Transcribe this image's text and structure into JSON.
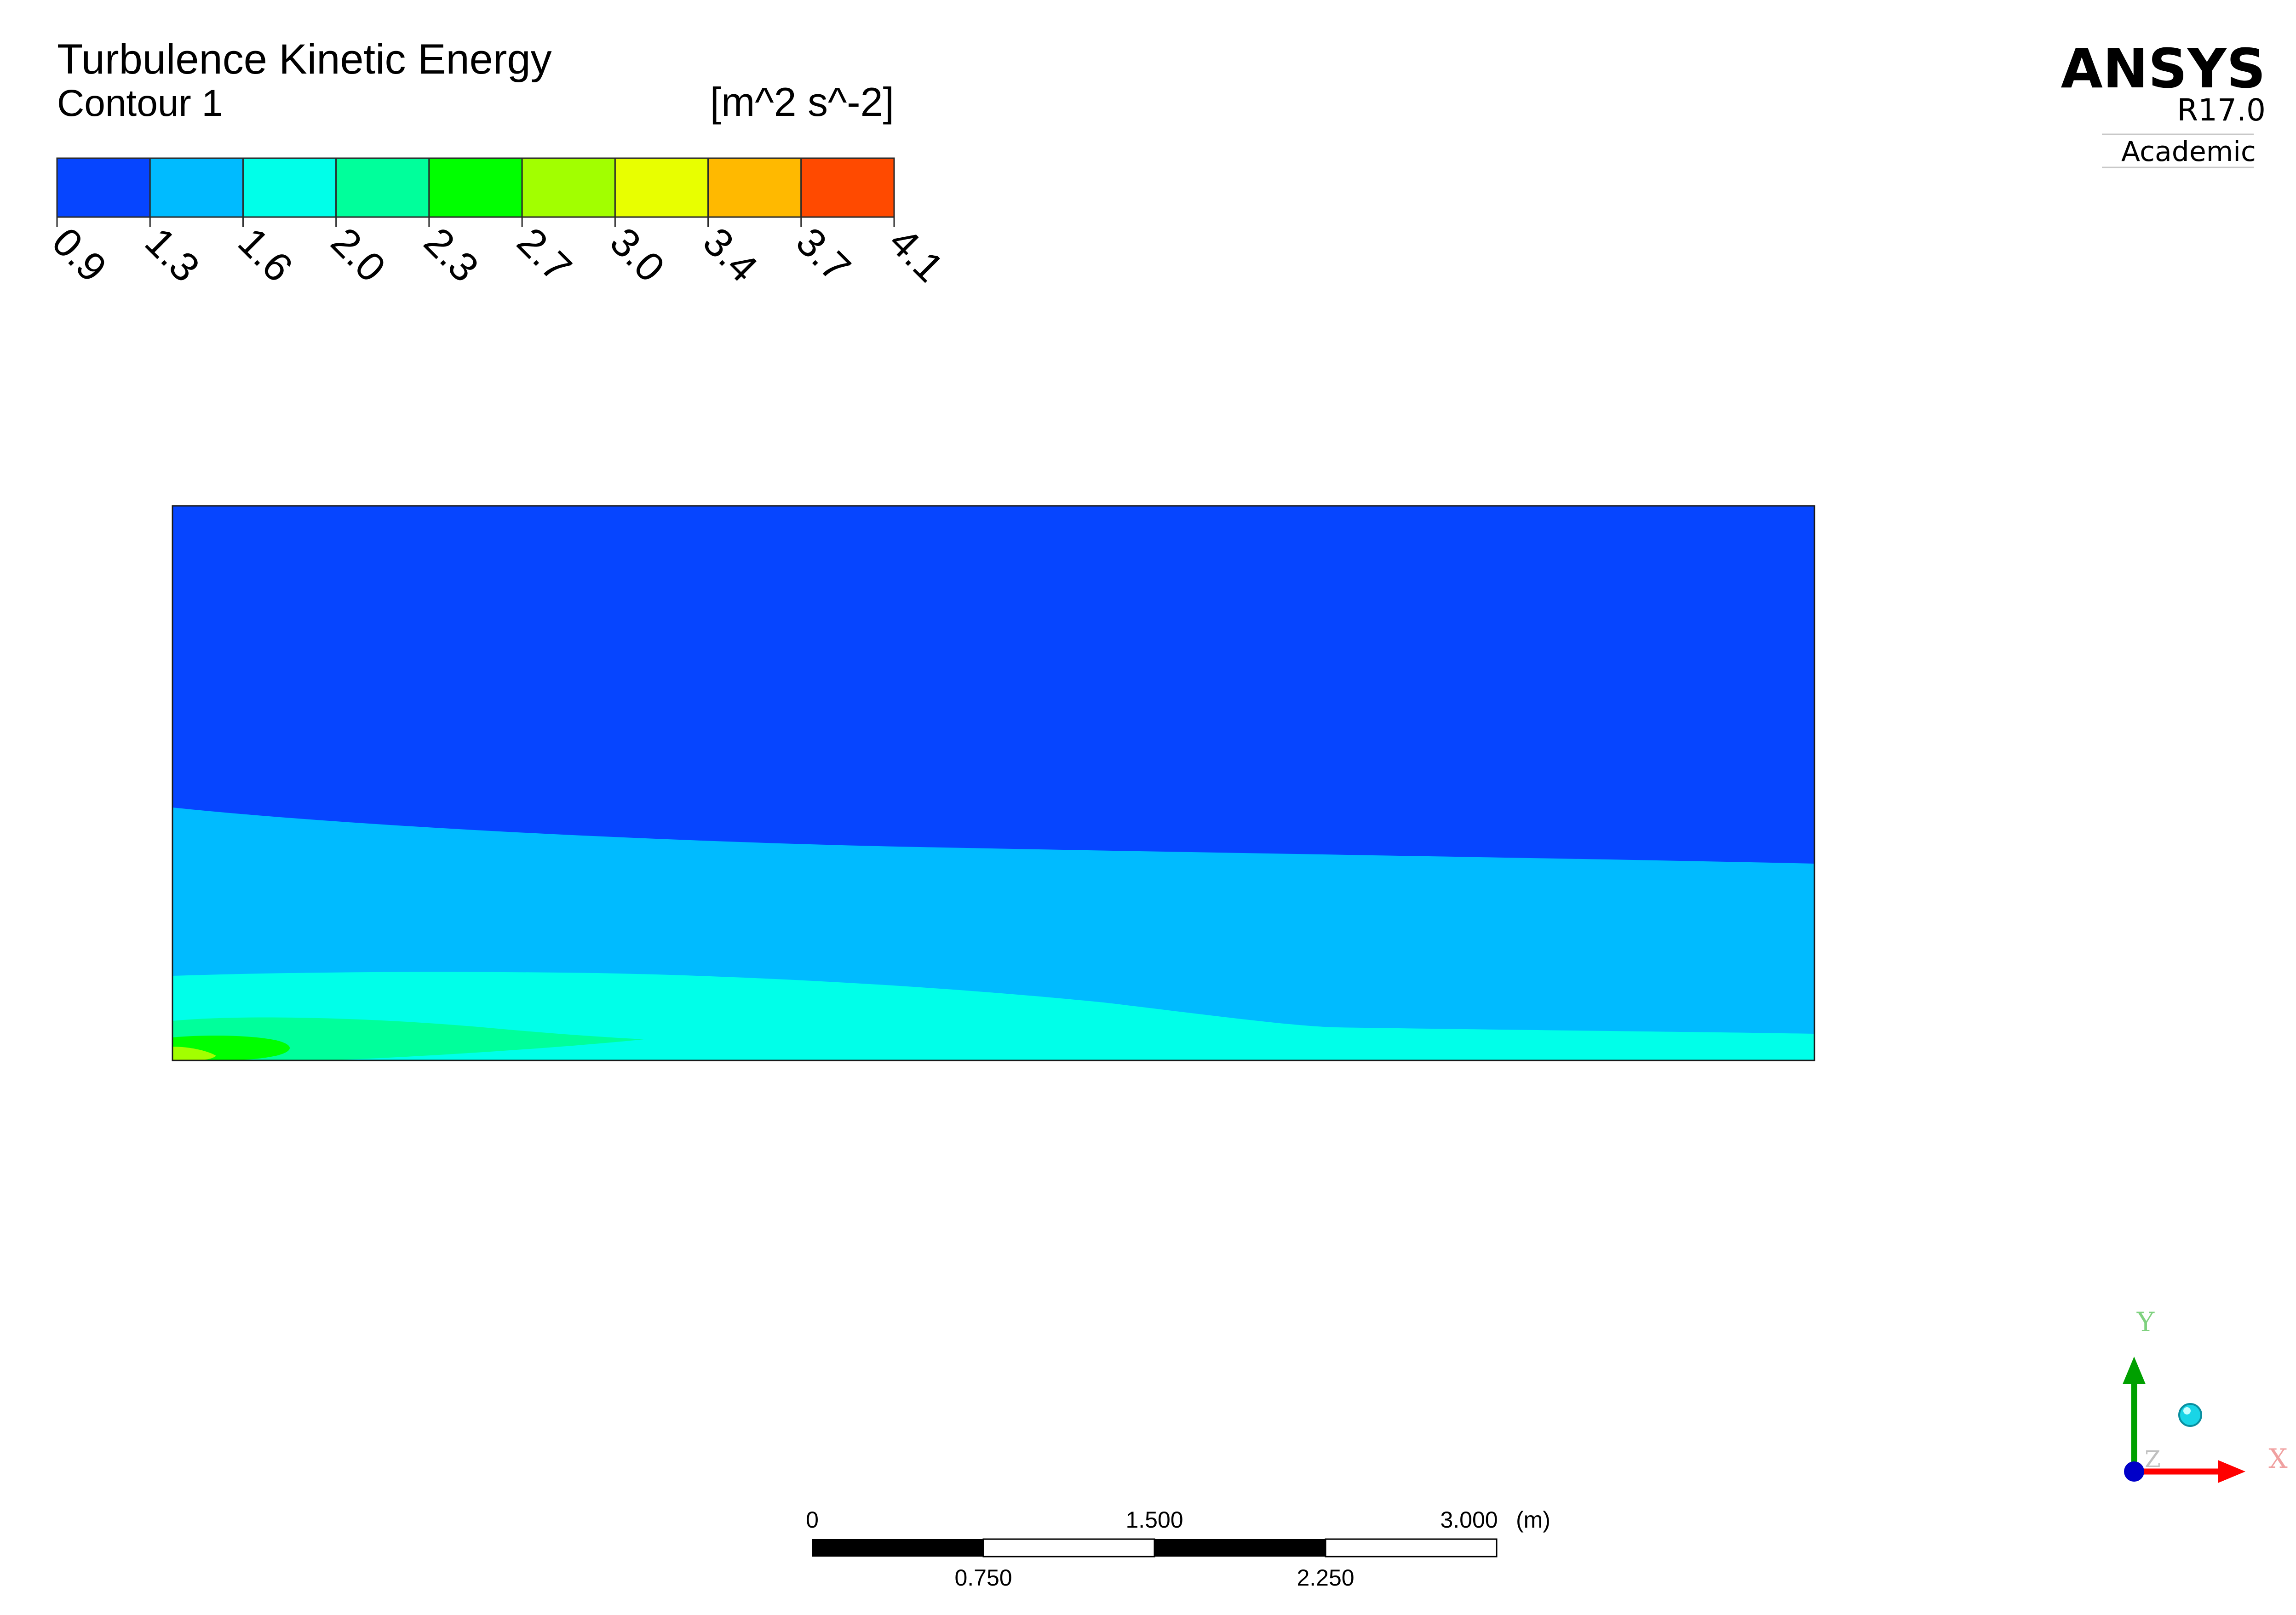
{
  "legend": {
    "title": "Turbulence Kinetic Energy",
    "subtitle": "Contour 1",
    "units": "[m^2 s^-2]",
    "ticks": [
      "0.9",
      "1.3",
      "1.6",
      "2.0",
      "2.3",
      "2.7",
      "3.0",
      "3.4",
      "3.7",
      "4.1"
    ],
    "bands": [
      "#0645FF",
      "#00BBFF",
      "#00FFE9",
      "#00FF9B",
      "#00FF00",
      "#A2FF00",
      "#E8FF00",
      "#FFB900",
      "#FF4A00"
    ]
  },
  "brand": {
    "name": "ANSYS",
    "version": "R17.0",
    "edition": "Academic"
  },
  "scale_bar": {
    "top_labels": [
      "0",
      "1.500",
      "3.000"
    ],
    "bottom_labels": [
      "0.750",
      "2.250"
    ],
    "unit": "(m)"
  },
  "axes_triad": {
    "y_label": "Y",
    "x_label": "X",
    "z_label": "Z",
    "x_color": "#FF0000",
    "y_color": "#00A000",
    "z_color": "#0000C8"
  },
  "contour": {
    "colors": {
      "band_0_9": "#0645FF",
      "band_1_3": "#00BBFF",
      "band_1_6": "#00FFE9",
      "band_2_0": "#00FF9B",
      "band_2_3": "#00FF00",
      "band_2_7": "#A2FF00"
    }
  }
}
